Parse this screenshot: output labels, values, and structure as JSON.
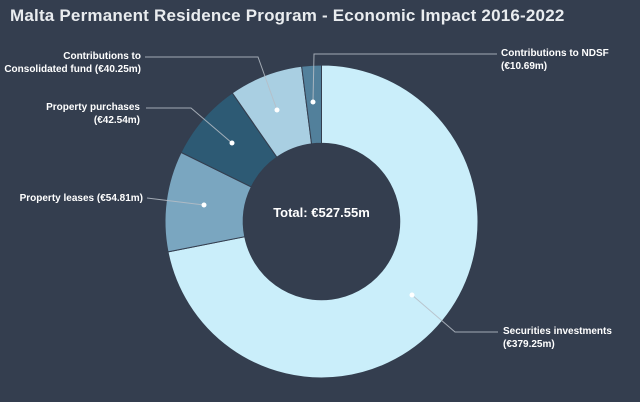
{
  "title": "Malta Permanent Residence Program - Economic Impact 2016-2022",
  "colors": {
    "background": "#343e4f",
    "title_text": "#e9ecef",
    "label_text": "#ffffff",
    "leader_line": "#b6bdc6",
    "slice_border": "#343e4f"
  },
  "center": {
    "label": "Total:",
    "value": "€527.55m"
  },
  "callouts": {
    "consolidated": {
      "line1": "Contributions to",
      "line2": "Consolidated fund (€40.25m)"
    },
    "purchases": {
      "line1": "Property purchases",
      "line2": "(€42.54m)"
    },
    "leases": {
      "line1": "Property leases (€54.81m)"
    },
    "ndsf": {
      "line1": "Contributions to NDSF",
      "line2": "(€10.69m)"
    },
    "securities": {
      "line1": "Securities investments",
      "line2": "(€379.25m)"
    }
  },
  "chart_data": {
    "type": "pie",
    "donut": true,
    "title": "Malta Permanent Residence Program - Economic Impact 2016-2022",
    "unit": "€ millions",
    "total": 527.55,
    "total_label": "Total: €527.55m",
    "start_angle_deg": 0,
    "direction": "clockwise",
    "inner_radius_ratio": 0.5,
    "legend": "none",
    "slices": [
      {
        "label": "Securities investments",
        "value": 379.25,
        "display": "€379.25m",
        "color": "#caeefa"
      },
      {
        "label": "Property leases",
        "value": 54.81,
        "display": "€54.81m",
        "color": "#7aa6c0"
      },
      {
        "label": "Property purchases",
        "value": 42.54,
        "display": "€42.54m",
        "color": "#2d5a74"
      },
      {
        "label": "Contributions to Consolidated fund",
        "value": 40.25,
        "display": "€40.25m",
        "color": "#a9cfe2"
      },
      {
        "label": "Contributions to NDSF",
        "value": 10.69,
        "display": "€10.69m",
        "color": "#52809b"
      }
    ]
  }
}
